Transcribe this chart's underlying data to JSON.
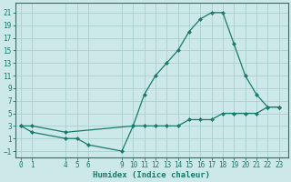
{
  "x_upper": [
    0,
    1,
    4,
    10,
    11,
    12,
    13,
    14,
    15,
    16,
    17,
    18,
    19,
    20,
    21,
    22,
    23
  ],
  "y_upper": [
    3,
    3,
    2,
    3,
    8,
    11,
    13,
    15,
    18,
    20,
    21,
    21,
    16,
    11,
    8,
    6,
    6
  ],
  "x_lower": [
    0,
    1,
    4,
    5,
    6,
    9,
    10,
    11,
    12,
    13,
    14,
    15,
    16,
    17,
    18,
    19,
    20,
    21,
    22,
    23
  ],
  "y_lower": [
    3,
    2,
    1,
    1,
    0,
    -1,
    3,
    3,
    3,
    3,
    3,
    4,
    4,
    4,
    5,
    5,
    5,
    5,
    6,
    6
  ],
  "line_color": "#1a7a6e",
  "bg_color": "#cce8e8",
  "grid_color": "#aacfcf",
  "xlabel": "Humidex (Indice chaleur)",
  "xlabel_fontsize": 6.5,
  "xlabel_fontweight": "bold",
  "xticks": [
    0,
    1,
    4,
    5,
    6,
    9,
    10,
    11,
    12,
    13,
    14,
    15,
    16,
    17,
    18,
    19,
    20,
    21,
    22,
    23
  ],
  "yticks": [
    -1,
    1,
    3,
    5,
    7,
    9,
    11,
    13,
    15,
    17,
    19,
    21
  ],
  "xlim": [
    -0.5,
    23.8
  ],
  "ylim": [
    -2.0,
    22.5
  ],
  "marker": "D",
  "marker_size": 2.0,
  "line_width": 0.9
}
